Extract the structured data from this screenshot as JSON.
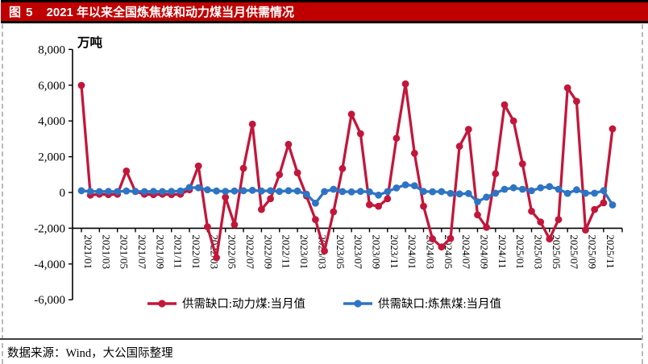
{
  "page": {
    "title_bar": {
      "figure_label": "图 5",
      "title": "2021 年以来全国炼焦煤和动力煤当月供需情况"
    },
    "source_note": "数据来源：Wind，大公国际整理"
  },
  "colors": {
    "title_bar_bg": "#c00000",
    "title_text": "#ffffff",
    "thermal_red": "#c2173b",
    "coking_blue": "#2e74c4",
    "axis": "#000000"
  },
  "chart_data": {
    "type": "line",
    "unit_label": "万吨",
    "ylim": [
      -6000,
      8000
    ],
    "y_ticks": [
      8000,
      6000,
      4000,
      2000,
      0,
      -2000,
      -4000,
      -6000
    ],
    "x_label_every": 2,
    "grid": false,
    "legend_position": "bottom",
    "x": [
      "2021/01",
      "2021/02",
      "2021/03",
      "2021/04",
      "2021/05",
      "2021/06",
      "2021/07",
      "2021/08",
      "2021/09",
      "2021/10",
      "2021/11",
      "2021/12",
      "2022/01",
      "2022/02",
      "2022/03",
      "2022/04",
      "2022/05",
      "2022/06",
      "2022/07",
      "2022/08",
      "2022/09",
      "2022/10",
      "2022/11",
      "2022/12",
      "2023/01",
      "2023/02",
      "2023/03",
      "2023/04",
      "2023/05",
      "2023/06",
      "2023/07",
      "2023/08",
      "2023/09",
      "2023/10",
      "2023/11",
      "2023/12",
      "2024/01",
      "2024/02",
      "2024/03",
      "2024/04",
      "2024/05",
      "2024/06",
      "2024/07",
      "2024/08",
      "2024/09",
      "2024/10",
      "2024/11",
      "2024/12",
      "2025/01",
      "2025/02",
      "2025/03",
      "2025/04",
      "2025/05",
      "2025/06",
      "2025/07",
      "2025/08",
      "2025/09",
      "2025/10",
      "2025/11",
      "2025/12"
    ],
    "series": [
      {
        "name": "供需缺口:动力煤:当月值",
        "color": "#c2173b",
        "values": [
          5990,
          -150,
          -100,
          -120,
          -100,
          1200,
          50,
          -100,
          -120,
          -100,
          -120,
          -100,
          150,
          1480,
          -1920,
          -3650,
          -270,
          -1800,
          1350,
          3820,
          -950,
          -350,
          1000,
          2690,
          1100,
          -200,
          -1520,
          -3270,
          -1080,
          1340,
          4380,
          3290,
          -680,
          -770,
          -350,
          3030,
          6070,
          2190,
          -770,
          -2600,
          -3050,
          -2570,
          2580,
          3530,
          -1250,
          -1950,
          1050,
          4900,
          4000,
          1600,
          -1050,
          -1650,
          -2600,
          -1520,
          5850,
          5100,
          -2100,
          -950,
          -580,
          3560
        ]
      },
      {
        "name": "供需缺口:炼焦煤:当月值",
        "color": "#2e74c4",
        "values": [
          100,
          60,
          50,
          60,
          50,
          80,
          60,
          50,
          60,
          50,
          60,
          80,
          280,
          260,
          150,
          80,
          60,
          80,
          100,
          120,
          80,
          100,
          60,
          100,
          80,
          -100,
          -600,
          50,
          180,
          50,
          30,
          60,
          30,
          -150,
          50,
          250,
          430,
          380,
          60,
          40,
          50,
          -50,
          -80,
          -60,
          -520,
          -260,
          -40,
          180,
          260,
          180,
          100,
          260,
          330,
          180,
          -50,
          150,
          -40,
          -40,
          100,
          -700
        ]
      }
    ]
  }
}
